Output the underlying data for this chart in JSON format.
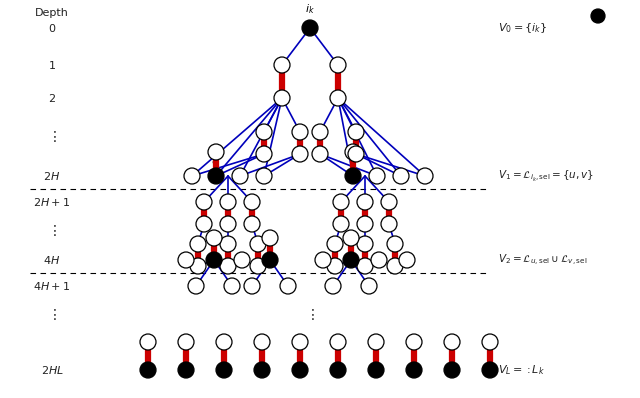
{
  "bg_color": "#ffffff",
  "node_ec": "#000000",
  "node_open_fc": "#ffffff",
  "node_filled_fc": "#000000",
  "blue": "#0000bb",
  "red": "#cc0000",
  "node_r": 8,
  "red_lw": 4.5,
  "blue_lw": 1.2,
  "fig_w": 6.4,
  "fig_h": 3.98,
  "dpi": 100
}
